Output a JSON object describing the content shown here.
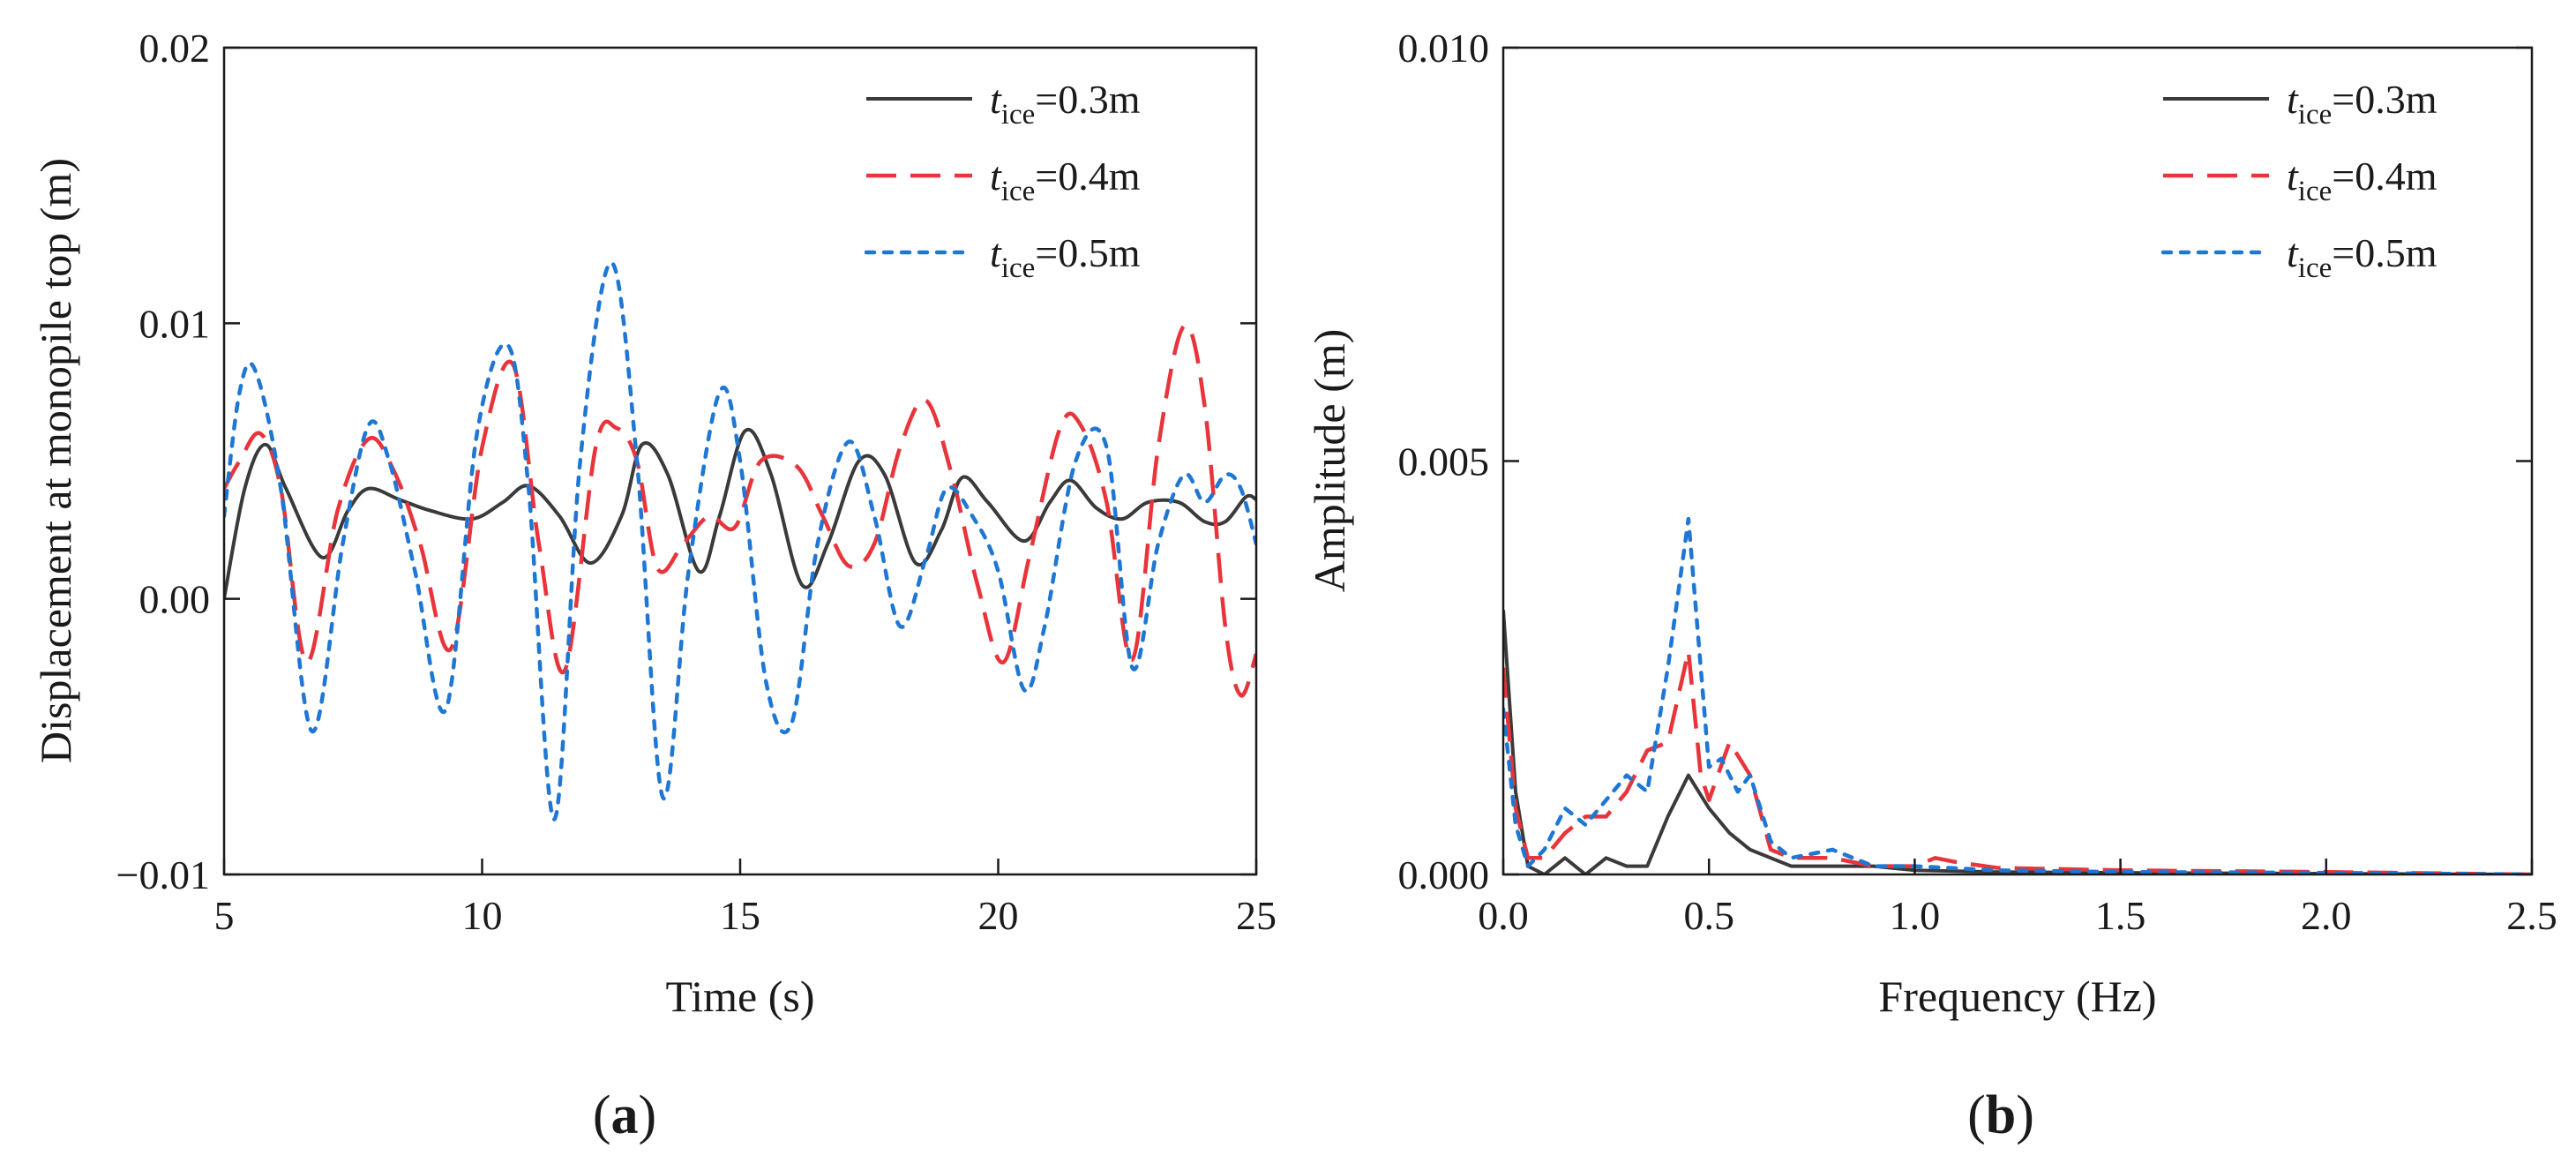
{
  "figure": {
    "panels": [
      {
        "label_open": "(",
        "label_letter": "a",
        "label_close": ")"
      },
      {
        "label_open": "(",
        "label_letter": "b",
        "label_close": ")"
      }
    ]
  },
  "chart_data": [
    {
      "id": "a",
      "type": "line",
      "title": "",
      "xlabel": "Time (s)",
      "ylabel": "Displacement at monopile top (m)",
      "xlim": [
        5,
        25
      ],
      "ylim": [
        -0.01,
        0.02
      ],
      "xticks": [
        5,
        10,
        15,
        20,
        25
      ],
      "xtick_labels": [
        "5",
        "10",
        "15",
        "20",
        "25"
      ],
      "yticks": [
        -0.01,
        0,
        0.01,
        0.02
      ],
      "ytick_labels": [
        "−0.01",
        "0.00",
        "0.01",
        "0.02"
      ],
      "grid": false,
      "legend_position": "top-right",
      "series": [
        {
          "name": "t_ice=0.3m",
          "legend_symbol": "t",
          "legend_sub": "ice",
          "legend_value": "=0.3m",
          "color": "#3a3a3a",
          "style": "solid",
          "x": [
            5.0,
            5.4,
            5.8,
            6.2,
            6.9,
            7.4,
            7.8,
            8.4,
            9.0,
            9.8,
            10.4,
            10.9,
            11.5,
            12.1,
            12.7,
            13.1,
            13.6,
            14.2,
            14.6,
            15.1,
            15.6,
            16.2,
            16.7,
            17.3,
            17.8,
            18.4,
            18.9,
            19.3,
            19.8,
            20.5,
            21.0,
            21.4,
            21.9,
            22.4,
            22.9,
            23.5,
            24.0,
            24.4,
            24.8,
            25.0
          ],
          "y": [
            0.0,
            0.004,
            0.0056,
            0.004,
            0.0015,
            0.0032,
            0.004,
            0.0036,
            0.0032,
            0.0029,
            0.0035,
            0.0041,
            0.003,
            0.0013,
            0.003,
            0.0056,
            0.0045,
            0.001,
            0.003,
            0.0061,
            0.0045,
            0.0005,
            0.002,
            0.005,
            0.0045,
            0.0013,
            0.0025,
            0.0044,
            0.0035,
            0.0021,
            0.0035,
            0.0043,
            0.0033,
            0.0029,
            0.0035,
            0.0035,
            0.0028,
            0.0028,
            0.0037,
            0.0036
          ]
        },
        {
          "name": "t_ice=0.4m",
          "legend_symbol": "t",
          "legend_sub": "ice",
          "legend_value": "=0.4m",
          "color": "#e8343a",
          "style": "dashed",
          "x": [
            5.0,
            5.3,
            5.7,
            6.1,
            6.6,
            7.2,
            7.8,
            8.3,
            8.8,
            9.4,
            10.0,
            10.6,
            11.1,
            11.6,
            12.2,
            12.6,
            13.0,
            13.4,
            13.9,
            14.4,
            14.9,
            15.4,
            16.1,
            16.6,
            17.1,
            17.6,
            18.1,
            18.6,
            19.1,
            19.6,
            20.1,
            20.6,
            21.2,
            21.6,
            22.1,
            22.6,
            23.1,
            23.6,
            24.0,
            24.4,
            24.7,
            25.0
          ],
          "y": [
            0.004,
            0.005,
            0.006,
            0.004,
            -0.0023,
            0.0032,
            0.0058,
            0.0046,
            0.002,
            -0.0018,
            0.0055,
            0.0085,
            0.002,
            -0.0026,
            0.0055,
            0.0062,
            0.005,
            0.0011,
            0.002,
            0.003,
            0.0026,
            0.005,
            0.0048,
            0.003,
            0.0012,
            0.002,
            0.0055,
            0.0072,
            0.0045,
            0.0005,
            -0.0023,
            0.0015,
            0.0062,
            0.0063,
            0.0035,
            -0.0022,
            0.0055,
            0.0099,
            0.007,
            -0.001,
            -0.0035,
            -0.002
          ]
        },
        {
          "name": "t_ice=0.5m",
          "legend_symbol": "t",
          "legend_sub": "ice",
          "legend_value": "=0.5m",
          "color": "#1f77d4",
          "style": "dotted",
          "x": [
            5.0,
            5.3,
            5.6,
            6.1,
            6.7,
            7.3,
            7.8,
            8.2,
            8.7,
            9.3,
            9.9,
            10.5,
            10.9,
            11.4,
            11.9,
            12.5,
            13.0,
            13.5,
            14.0,
            14.6,
            15.0,
            15.5,
            16.0,
            16.5,
            17.1,
            17.6,
            18.1,
            18.6,
            19.0,
            19.5,
            20.0,
            20.5,
            20.9,
            21.5,
            22.1,
            22.6,
            23.1,
            23.6,
            24.0,
            24.4,
            24.7,
            25.0
          ],
          "y": [
            0.003,
            0.0075,
            0.0083,
            0.004,
            -0.0048,
            0.002,
            0.0063,
            0.005,
            0.001,
            -0.004,
            0.006,
            0.0092,
            0.004,
            -0.008,
            0.005,
            0.0122,
            0.005,
            -0.0072,
            0.001,
            0.0075,
            0.005,
            -0.003,
            -0.0045,
            0.002,
            0.0057,
            0.003,
            -0.001,
            0.0015,
            0.004,
            0.003,
            0.001,
            -0.0033,
            -0.001,
            0.005,
            0.0055,
            -0.0025,
            0.002,
            0.0045,
            0.0035,
            0.0045,
            0.004,
            0.002
          ]
        }
      ]
    },
    {
      "id": "b",
      "type": "line",
      "title": "",
      "xlabel": "Frequency (Hz)",
      "ylabel": "Amplitude (m)",
      "xlim": [
        0,
        2.5
      ],
      "ylim": [
        0,
        0.01
      ],
      "xticks": [
        0,
        0.5,
        1.0,
        1.5,
        2.0,
        2.5
      ],
      "xtick_labels": [
        "0.0",
        "0.5",
        "1.0",
        "1.5",
        "2.0",
        "2.5"
      ],
      "yticks": [
        0,
        0.005,
        0.01
      ],
      "ytick_labels": [
        "0.000",
        "0.005",
        "0.010"
      ],
      "grid": false,
      "legend_position": "top-right",
      "series": [
        {
          "name": "t_ice=0.3m",
          "legend_symbol": "t",
          "legend_sub": "ice",
          "legend_value": "=0.3m",
          "color": "#3a3a3a",
          "style": "solid",
          "x": [
            0.0,
            0.03,
            0.06,
            0.1,
            0.15,
            0.2,
            0.25,
            0.3,
            0.35,
            0.4,
            0.45,
            0.5,
            0.55,
            0.6,
            0.65,
            0.7,
            0.8,
            0.9,
            1.0,
            1.2,
            1.5,
            2.0,
            2.5
          ],
          "y": [
            0.0032,
            0.001,
            0.0001,
            0.0,
            0.0002,
            0.0,
            0.0002,
            0.0001,
            0.0001,
            0.0007,
            0.0012,
            0.0008,
            0.0005,
            0.0003,
            0.0002,
            0.0001,
            0.0001,
            0.0001,
            5e-05,
            3e-05,
            2e-05,
            1e-05,
            0.0
          ]
        },
        {
          "name": "t_ice=0.4m",
          "legend_symbol": "t",
          "legend_sub": "ice",
          "legend_value": "=0.4m",
          "color": "#e8343a",
          "style": "dashed",
          "x": [
            0.0,
            0.03,
            0.06,
            0.1,
            0.15,
            0.2,
            0.25,
            0.3,
            0.35,
            0.4,
            0.45,
            0.48,
            0.5,
            0.55,
            0.6,
            0.65,
            0.7,
            0.8,
            0.9,
            1.0,
            1.05,
            1.1,
            1.2,
            1.5,
            2.0,
            2.5
          ],
          "y": [
            0.0025,
            0.0008,
            0.0002,
            0.0002,
            0.0005,
            0.0007,
            0.0007,
            0.001,
            0.0015,
            0.0016,
            0.0027,
            0.0012,
            0.0009,
            0.0016,
            0.0012,
            0.0003,
            0.0002,
            0.0002,
            0.0001,
            0.0001,
            0.0002,
            0.00015,
            8e-05,
            5e-05,
            3e-05,
            0.0
          ]
        },
        {
          "name": "t_ice=0.5m",
          "legend_symbol": "t",
          "legend_sub": "ice",
          "legend_value": "=0.5m",
          "color": "#1f77d4",
          "style": "dotted",
          "x": [
            0.0,
            0.03,
            0.06,
            0.1,
            0.15,
            0.2,
            0.25,
            0.3,
            0.35,
            0.4,
            0.45,
            0.5,
            0.53,
            0.57,
            0.6,
            0.65,
            0.7,
            0.8,
            0.9,
            1.0,
            1.2,
            1.5,
            2.0,
            2.5
          ],
          "y": [
            0.002,
            0.0006,
            0.0001,
            0.0003,
            0.0008,
            0.0006,
            0.0009,
            0.0012,
            0.001,
            0.0025,
            0.0043,
            0.0013,
            0.0014,
            0.001,
            0.0012,
            0.0004,
            0.0002,
            0.0003,
            0.0001,
            0.0001,
            5e-05,
            3e-05,
            2e-05,
            0.0
          ]
        }
      ]
    }
  ]
}
